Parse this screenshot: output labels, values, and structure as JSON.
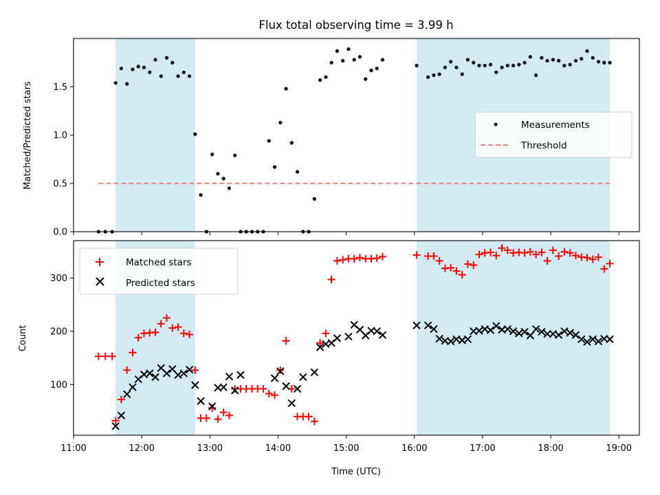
{
  "chart_data": [
    {
      "type": "scatter",
      "title": "Flux total observing time = 3.99 h",
      "xlabel": "",
      "ylabel": "Matched/Predicted stars",
      "xlim": [
        "11:00",
        "19:18"
      ],
      "ylim": [
        0,
        2.0
      ],
      "yticks": [
        "0.0",
        "0.5",
        "1.0",
        "1.5"
      ],
      "grid": false,
      "legend_position": "center-right",
      "shaded_intervals": [
        [
          "11:37",
          "12:47"
        ],
        [
          "16:02",
          "18:52"
        ]
      ],
      "shade_color": "#add8e6",
      "series": [
        {
          "name": "Measurements",
          "marker": "dot",
          "color": "#000000",
          "x": [
            "11:22",
            "11:28",
            "11:34",
            "11:37",
            "11:42",
            "11:47",
            "11:52",
            "11:57",
            "12:02",
            "12:07",
            "12:12",
            "12:17",
            "12:22",
            "12:27",
            "12:32",
            "12:37",
            "12:42",
            "12:47",
            "12:52",
            "12:57",
            "13:02",
            "13:07",
            "13:12",
            "13:17",
            "13:22",
            "13:27",
            "13:32",
            "13:37",
            "13:42",
            "13:47",
            "13:52",
            "13:57",
            "14:02",
            "14:07",
            "14:12",
            "14:17",
            "14:22",
            "14:27",
            "14:32",
            "14:37",
            "14:42",
            "14:47",
            "14:52",
            "14:57",
            "15:02",
            "15:07",
            "15:12",
            "15:17",
            "15:22",
            "15:27",
            "15:32",
            "16:02",
            "16:12",
            "16:17",
            "16:22",
            "16:27",
            "16:32",
            "16:37",
            "16:42",
            "16:47",
            "16:52",
            "16:57",
            "17:02",
            "17:07",
            "17:12",
            "17:17",
            "17:22",
            "17:27",
            "17:32",
            "17:37",
            "17:42",
            "17:47",
            "17:52",
            "17:57",
            "18:02",
            "18:07",
            "18:12",
            "18:17",
            "18:22",
            "18:27",
            "18:32",
            "18:37",
            "18:42",
            "18:47",
            "18:52"
          ],
          "y": [
            0,
            0,
            0,
            1.54,
            1.69,
            1.53,
            1.68,
            1.71,
            1.7,
            1.65,
            1.78,
            1.61,
            1.8,
            1.75,
            1.61,
            1.65,
            1.61,
            1.01,
            0.38,
            0,
            0.8,
            0.6,
            0.55,
            0.45,
            0.79,
            0,
            0,
            0,
            0,
            0,
            0.94,
            0.67,
            1.13,
            1.48,
            0.92,
            0.62,
            0,
            0,
            0.34,
            1.57,
            1.6,
            1.75,
            1.87,
            1.77,
            1.89,
            1.78,
            1.81,
            1.58,
            1.67,
            1.69,
            1.78,
            1.72,
            1.6,
            1.62,
            1.63,
            1.7,
            1.76,
            1.7,
            1.63,
            1.78,
            1.75,
            1.72,
            1.72,
            1.73,
            1.65,
            1.7,
            1.72,
            1.72,
            1.73,
            1.75,
            1.81,
            1.62,
            1.8,
            1.77,
            1.78,
            1.77,
            1.72,
            1.73,
            1.77,
            1.79,
            1.87,
            1.8,
            1.76,
            1.75,
            1.75
          ]
        },
        {
          "name": "Threshold",
          "style": "dashed",
          "color": "#f08080",
          "x": [
            "11:22",
            "18:52"
          ],
          "y": [
            0.5,
            0.5
          ]
        }
      ]
    },
    {
      "type": "scatter",
      "title": "",
      "xlabel": "Time (UTC)",
      "ylabel": "Count",
      "xlim": [
        "11:00",
        "19:18"
      ],
      "ylim": [
        5,
        370
      ],
      "yticks": [
        "100",
        "200",
        "300"
      ],
      "xticks": [
        "11:00",
        "12:00",
        "13:00",
        "14:00",
        "15:00",
        "16:00",
        "17:00",
        "18:00",
        "19:00"
      ],
      "grid": false,
      "legend_position": "top-left",
      "shaded_intervals": [
        [
          "11:37",
          "12:47"
        ],
        [
          "16:02",
          "18:52"
        ]
      ],
      "shade_color": "#add8e6",
      "series": [
        {
          "name": "Matched stars",
          "marker": "plus",
          "color": "#ff0000",
          "x": [
            "11:22",
            "11:28",
            "11:34",
            "11:37",
            "11:42",
            "11:47",
            "11:52",
            "11:57",
            "12:02",
            "12:07",
            "12:12",
            "12:17",
            "12:22",
            "12:27",
            "12:32",
            "12:37",
            "12:42",
            "12:47",
            "12:52",
            "12:57",
            "13:02",
            "13:07",
            "13:12",
            "13:17",
            "13:22",
            "13:27",
            "13:32",
            "13:37",
            "13:42",
            "13:47",
            "13:52",
            "13:57",
            "14:02",
            "14:07",
            "14:12",
            "14:17",
            "14:22",
            "14:27",
            "14:32",
            "14:37",
            "14:42",
            "14:47",
            "14:52",
            "14:57",
            "15:02",
            "15:07",
            "15:12",
            "15:17",
            "15:22",
            "15:27",
            "15:32",
            "16:02",
            "16:12",
            "16:17",
            "16:22",
            "16:27",
            "16:32",
            "16:37",
            "16:42",
            "16:47",
            "16:52",
            "16:57",
            "17:02",
            "17:07",
            "17:12",
            "17:17",
            "17:22",
            "17:27",
            "17:32",
            "17:37",
            "17:42",
            "17:47",
            "17:52",
            "17:57",
            "18:02",
            "18:07",
            "18:12",
            "18:17",
            "18:22",
            "18:27",
            "18:32",
            "18:37",
            "18:42",
            "18:47",
            "18:52"
          ],
          "y": [
            153,
            153,
            153,
            32,
            72,
            127,
            160,
            188,
            196,
            197,
            198,
            214,
            225,
            206,
            208,
            196,
            194,
            127,
            37,
            37,
            56,
            35,
            48,
            42,
            92,
            92,
            92,
            92,
            92,
            92,
            83,
            80,
            127,
            182,
            92,
            40,
            40,
            40,
            31,
            178,
            196,
            297,
            332,
            334,
            336,
            336,
            338,
            336,
            336,
            337,
            340,
            343,
            341,
            341,
            332,
            318,
            319,
            313,
            306,
            326,
            324,
            344,
            347,
            348,
            342,
            356,
            352,
            347,
            348,
            347,
            349,
            344,
            348,
            332,
            352,
            341,
            349,
            347,
            342,
            339,
            338,
            335,
            339,
            317,
            327
          ]
        },
        {
          "name": "Predicted stars",
          "marker": "x",
          "color": "#000000",
          "x": [
            "11:37",
            "11:42",
            "11:47",
            "11:52",
            "11:57",
            "12:02",
            "12:07",
            "12:12",
            "12:17",
            "12:22",
            "12:27",
            "12:32",
            "12:37",
            "12:42",
            "12:47",
            "12:52",
            "13:02",
            "13:07",
            "13:12",
            "13:17",
            "13:22",
            "13:27",
            "13:57",
            "14:02",
            "14:07",
            "14:12",
            "14:17",
            "14:22",
            "14:32",
            "14:37",
            "14:42",
            "14:47",
            "14:52",
            "15:02",
            "15:07",
            "15:12",
            "15:17",
            "15:22",
            "15:27",
            "15:32",
            "16:02",
            "16:12",
            "16:17",
            "16:22",
            "16:27",
            "16:32",
            "16:37",
            "16:42",
            "16:47",
            "16:52",
            "16:57",
            "17:02",
            "17:07",
            "17:12",
            "17:17",
            "17:22",
            "17:27",
            "17:32",
            "17:37",
            "17:42",
            "17:47",
            "17:52",
            "17:57",
            "18:02",
            "18:07",
            "18:12",
            "18:17",
            "18:22",
            "18:27",
            "18:32",
            "18:37",
            "18:42",
            "18:47",
            "18:52"
          ],
          "y": [
            22,
            42,
            82,
            95,
            110,
            119,
            121,
            114,
            131,
            121,
            129,
            118,
            121,
            128,
            99,
            69,
            59,
            94,
            95,
            115,
            89,
            118,
            112,
            125,
            97,
            65,
            92,
            114,
            123,
            170,
            176,
            178,
            187,
            190,
            212,
            203,
            192,
            201,
            200,
            193,
            211,
            211,
            204,
            186,
            182,
            181,
            185,
            183,
            185,
            200,
            201,
            204,
            202,
            210,
            203,
            204,
            200,
            196,
            199,
            192,
            204,
            199,
            195,
            195,
            193,
            200,
            197,
            193,
            185,
            180,
            185,
            181,
            186,
            185
          ]
        }
      ]
    }
  ]
}
